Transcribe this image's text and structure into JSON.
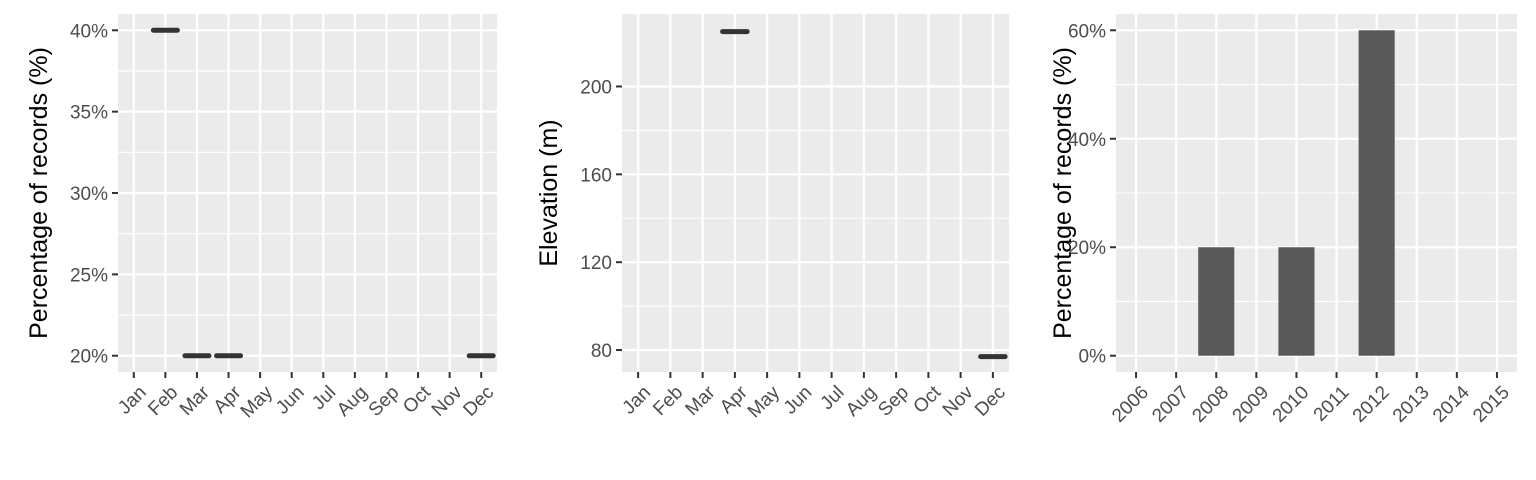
{
  "chart_data": [
    {
      "type": "line",
      "xlabel": "",
      "ylabel": "Percentage of records (%)",
      "categories": [
        "Jan",
        "Feb",
        "Mar",
        "Apr",
        "May",
        "Jun",
        "Jul",
        "Aug",
        "Sep",
        "Oct",
        "Nov",
        "Dec"
      ],
      "yticks": [
        20,
        25,
        30,
        35,
        40
      ],
      "ytick_labels": [
        "20%",
        "25%",
        "30%",
        "35%",
        "40%"
      ],
      "ylim": [
        19,
        41
      ],
      "grid": true,
      "points": [
        {
          "x": "Feb",
          "y": 40
        },
        {
          "x": "Mar",
          "y": 20
        },
        {
          "x": "Apr",
          "y": 20
        },
        {
          "x": "Dec",
          "y": 20
        }
      ]
    },
    {
      "type": "line",
      "xlabel": "",
      "ylabel": "Elevation (m)",
      "categories": [
        "Jan",
        "Feb",
        "Mar",
        "Apr",
        "May",
        "Jun",
        "Jul",
        "Aug",
        "Sep",
        "Oct",
        "Nov",
        "Dec"
      ],
      "yticks": [
        80,
        120,
        160,
        200
      ],
      "ytick_labels": [
        "80",
        "120",
        "160",
        "200"
      ],
      "ylim": [
        70,
        233
      ],
      "grid": true,
      "points": [
        {
          "x": "Apr",
          "y": 225
        },
        {
          "x": "Dec",
          "y": 77
        }
      ]
    },
    {
      "type": "bar",
      "xlabel": "",
      "ylabel": "Percentage of records (%)",
      "categories": [
        "2006",
        "2007",
        "2008",
        "2009",
        "2010",
        "2011",
        "2012",
        "2013",
        "2014",
        "2015"
      ],
      "values": [
        0,
        0,
        20,
        0,
        20,
        0,
        60,
        0,
        0,
        0
      ],
      "yticks": [
        0,
        20,
        40,
        60
      ],
      "ytick_labels": [
        "0%",
        "20%",
        "40%",
        "60%"
      ],
      "ylim": [
        -3,
        63
      ],
      "grid": true,
      "colors": {
        "bar": "#595959"
      }
    }
  ],
  "colors": {
    "panel_bg": "#ebebeb",
    "grid": "#ffffff",
    "tick_text": "#4d4d4d",
    "tick_mark": "#333333",
    "segment": "#333333",
    "bar": "#595959"
  }
}
